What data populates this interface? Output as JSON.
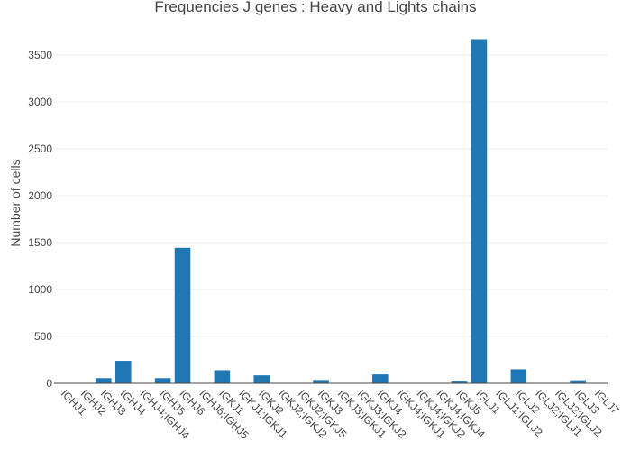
{
  "chart_data": {
    "type": "bar",
    "title": "Frequencies J genes : Heavy and Lights chains",
    "xlabel": "",
    "ylabel": "Number of cells",
    "ylim": [
      0,
      3800
    ],
    "yticks": [
      0,
      500,
      1000,
      1500,
      2000,
      2500,
      3000,
      3500
    ],
    "grid": true,
    "bar_color": "#1f77b4",
    "categories": [
      "IGHJ1",
      "IGHJ2",
      "IGHJ3",
      "IGHJ4",
      "IGHJ4;IGHJ4",
      "IGHJ5",
      "IGHJ6",
      "IGHJ6;IGHJ5",
      "IGKJ1",
      "IGKJ1;IGKJ1",
      "IGKJ2",
      "IGKJ2;IGKJ2",
      "IGKJ2;IGKJ5",
      "IGKJ3",
      "IGKJ3;IGKJ1",
      "IGKJ3;IGKJ2",
      "IGKJ4",
      "IGKJ4;IGKJ1",
      "IGKJ4;IGKJ2",
      "IGKJ4;IGKJ4",
      "IGKJ5",
      "IGLJ1",
      "IGLJ1;IGLJ2",
      "IGLJ2",
      "IGLJ2;IGLJ1",
      "IGLJ2;IGLJ2",
      "IGLJ3",
      "IGLJ7"
    ],
    "values": [
      4,
      3,
      55,
      240,
      2,
      55,
      1445,
      2,
      140,
      2,
      85,
      2,
      2,
      35,
      2,
      2,
      95,
      2,
      2,
      2,
      28,
      3670,
      3,
      150,
      2,
      2,
      32,
      3
    ]
  }
}
